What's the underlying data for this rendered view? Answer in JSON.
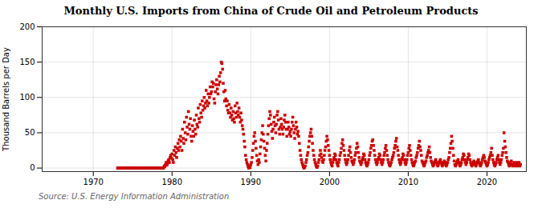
{
  "chart_data": {
    "type": "scatter",
    "title": "Monthly U.S. Imports from China of Crude Oil and Petroleum Products",
    "ylabel": "Thousand Barrels per Day",
    "source": "Source: U.S. Energy Information Administration",
    "color": "#cc0000",
    "marker": "square",
    "grid": true,
    "xlim": [
      1963.5,
      2025
    ],
    "xticks": [
      1970,
      1980,
      1990,
      2000,
      2010,
      2020
    ],
    "ylim": [
      -5,
      200
    ],
    "yticks": [
      0,
      50,
      100,
      150,
      200
    ],
    "x": [
      1973.083,
      1973.167,
      1973.25,
      1973.333,
      1973.417,
      1973.5,
      1973.583,
      1973.667,
      1973.75,
      1973.833,
      1973.917,
      1974.0,
      1974.083,
      1974.167,
      1974.25,
      1974.333,
      1974.417,
      1974.5,
      1974.583,
      1974.667,
      1974.75,
      1974.833,
      1974.917,
      1975.0,
      1975.083,
      1975.167,
      1975.25,
      1975.333,
      1975.417,
      1975.5,
      1975.583,
      1975.667,
      1975.75,
      1975.833,
      1975.917,
      1976.0,
      1976.083,
      1976.167,
      1976.25,
      1976.333,
      1976.417,
      1976.5,
      1976.583,
      1976.667,
      1976.75,
      1976.833,
      1976.917,
      1977.0,
      1977.083,
      1977.167,
      1977.25,
      1977.333,
      1977.417,
      1977.5,
      1977.583,
      1977.667,
      1977.75,
      1977.833,
      1977.917,
      1978.0,
      1978.083,
      1978.167,
      1978.25,
      1978.333,
      1978.417,
      1978.5,
      1978.583,
      1978.667,
      1978.75,
      1978.833,
      1978.917,
      1979.0,
      1979.083,
      1979.167,
      1979.25,
      1979.333,
      1979.417,
      1979.5,
      1979.583,
      1979.667,
      1979.75,
      1979.833,
      1979.917,
      1980.0,
      1980.083,
      1980.167,
      1980.25,
      1980.333,
      1980.417,
      1980.5,
      1980.583,
      1980.667,
      1980.75,
      1980.833,
      1980.917,
      1981.0,
      1981.083,
      1981.167,
      1981.25,
      1981.333,
      1981.417,
      1981.5,
      1981.583,
      1981.667,
      1981.75,
      1981.833,
      1981.917,
      1982.0,
      1982.083,
      1982.167,
      1982.25,
      1982.333,
      1982.417,
      1982.5,
      1982.583,
      1982.667,
      1982.75,
      1982.833,
      1982.917,
      1983.0,
      1983.083,
      1983.167,
      1983.25,
      1983.333,
      1983.417,
      1983.5,
      1983.583,
      1983.667,
      1983.75,
      1983.833,
      1983.917,
      1984.0,
      1984.083,
      1984.167,
      1984.25,
      1984.333,
      1984.417,
      1984.5,
      1984.583,
      1984.667,
      1984.75,
      1984.833,
      1984.917,
      1985.0,
      1985.083,
      1985.167,
      1985.25,
      1985.333,
      1985.417,
      1985.5,
      1985.583,
      1985.667,
      1985.75,
      1985.833,
      1985.917,
      1986.0,
      1986.083,
      1986.167,
      1986.25,
      1986.333,
      1986.417,
      1986.5,
      1986.583,
      1986.667,
      1986.75,
      1986.833,
      1986.917,
      1987.0,
      1987.083,
      1987.167,
      1987.25,
      1987.333,
      1987.417,
      1987.5,
      1987.583,
      1987.667,
      1987.75,
      1987.833,
      1987.917,
      1988.0,
      1988.083,
      1988.167,
      1988.25,
      1988.333,
      1988.417,
      1988.5,
      1988.583,
      1988.667,
      1988.75,
      1988.833,
      1988.917,
      1989.0,
      1989.083,
      1989.167,
      1989.25,
      1989.333,
      1989.417,
      1989.5,
      1989.583,
      1989.667,
      1989.75,
      1989.833,
      1989.917,
      1990.0,
      1990.083,
      1990.167,
      1990.25,
      1990.333,
      1990.417,
      1990.5,
      1990.583,
      1990.667,
      1990.75,
      1990.833,
      1990.917,
      1991.0,
      1991.083,
      1991.167,
      1991.25,
      1991.333,
      1991.417,
      1991.5,
      1991.583,
      1991.667,
      1991.75,
      1991.833,
      1991.917,
      1992.0,
      1992.083,
      1992.167,
      1992.25,
      1992.333,
      1992.417,
      1992.5,
      1992.583,
      1992.667,
      1992.75,
      1992.833,
      1992.917,
      1993.0,
      1993.083,
      1993.167,
      1993.25,
      1993.333,
      1993.417,
      1993.5,
      1993.583,
      1993.667,
      1993.75,
      1993.833,
      1993.917,
      1994.0,
      1994.083,
      1994.167,
      1994.25,
      1994.333,
      1994.417,
      1994.5,
      1994.583,
      1994.667,
      1994.75,
      1994.833,
      1994.917,
      1995.0,
      1995.083,
      1995.167,
      1995.25,
      1995.333,
      1995.417,
      1995.5,
      1995.583,
      1995.667,
      1995.75,
      1995.833,
      1995.917,
      1996.0,
      1996.083,
      1996.167,
      1996.25,
      1996.333,
      1996.417,
      1996.5,
      1996.583,
      1996.667,
      1996.75,
      1996.833,
      1996.917,
      1997.0,
      1997.083,
      1997.167,
      1997.25,
      1997.333,
      1997.417,
      1997.5,
      1997.583,
      1997.667,
      1997.75,
      1997.833,
      1997.917,
      1998.0,
      1998.083,
      1998.167,
      1998.25,
      1998.333,
      1998.417,
      1998.5,
      1998.583,
      1998.667,
      1998.75,
      1998.833,
      1998.917,
      1999.0,
      1999.083,
      1999.167,
      1999.25,
      1999.333,
      1999.417,
      1999.5,
      1999.583,
      1999.667,
      1999.75,
      1999.833,
      1999.917,
      2000.0,
      2000.083,
      2000.167,
      2000.25,
      2000.333,
      2000.417,
      2000.5,
      2000.583,
      2000.667,
      2000.75,
      2000.833,
      2000.917,
      2001.0,
      2001.083,
      2001.167,
      2001.25,
      2001.333,
      2001.417,
      2001.5,
      2001.583,
      2001.667,
      2001.75,
      2001.833,
      2001.917,
      2002.0,
      2002.083,
      2002.167,
      2002.25,
      2002.333,
      2002.417,
      2002.5,
      2002.583,
      2002.667,
      2002.75,
      2002.833,
      2002.917,
      2003.0,
      2003.083,
      2003.167,
      2003.25,
      2003.333,
      2003.417,
      2003.5,
      2003.583,
      2003.667,
      2003.75,
      2003.833,
      2003.917,
      2004.0,
      2004.083,
      2004.167,
      2004.25,
      2004.333,
      2004.417,
      2004.5,
      2004.583,
      2004.667,
      2004.75,
      2004.833,
      2004.917,
      2005.0,
      2005.083,
      2005.167,
      2005.25,
      2005.333,
      2005.417,
      2005.5,
      2005.583,
      2005.667,
      2005.75,
      2005.833,
      2005.917,
      2006.0,
      2006.083,
      2006.167,
      2006.25,
      2006.333,
      2006.417,
      2006.5,
      2006.583,
      2006.667,
      2006.75,
      2006.833,
      2006.917,
      2007.0,
      2007.083,
      2007.167,
      2007.25,
      2007.333,
      2007.417,
      2007.5,
      2007.583,
      2007.667,
      2007.75,
      2007.833,
      2007.917,
      2008.0,
      2008.083,
      2008.167,
      2008.25,
      2008.333,
      2008.417,
      2008.5,
      2008.583,
      2008.667,
      2008.75,
      2008.833,
      2008.917,
      2009.0,
      2009.083,
      2009.167,
      2009.25,
      2009.333,
      2009.417,
      2009.5,
      2009.583,
      2009.667,
      2009.75,
      2009.833,
      2009.917,
      2010.0,
      2010.083,
      2010.167,
      2010.25,
      2010.333,
      2010.417,
      2010.5,
      2010.583,
      2010.667,
      2010.75,
      2010.833,
      2010.917,
      2011.0,
      2011.083,
      2011.167,
      2011.25,
      2011.333,
      2011.417,
      2011.5,
      2011.583,
      2011.667,
      2011.75,
      2011.833,
      2011.917,
      2012.0,
      2012.083,
      2012.167,
      2012.25,
      2012.333,
      2012.417,
      2012.5,
      2012.583,
      2012.667,
      2012.75,
      2012.833,
      2012.917,
      2013.0,
      2013.083,
      2013.167,
      2013.25,
      2013.333,
      2013.417,
      2013.5,
      2013.583,
      2013.667,
      2013.75,
      2013.833,
      2013.917,
      2014.0,
      2014.083,
      2014.167,
      2014.25,
      2014.333,
      2014.417,
      2014.5,
      2014.583,
      2014.667,
      2014.75,
      2014.833,
      2014.917,
      2015.0,
      2015.083,
      2015.167,
      2015.25,
      2015.333,
      2015.417,
      2015.5,
      2015.583,
      2015.667,
      2015.75,
      2015.833,
      2015.917,
      2016.0,
      2016.083,
      2016.167,
      2016.25,
      2016.333,
      2016.417,
      2016.5,
      2016.583,
      2016.667,
      2016.75,
      2016.833,
      2016.917,
      2017.0,
      2017.083,
      2017.167,
      2017.25,
      2017.333,
      2017.417,
      2017.5,
      2017.583,
      2017.667,
      2017.75,
      2017.833,
      2017.917,
      2018.0,
      2018.083,
      2018.167,
      2018.25,
      2018.333,
      2018.417,
      2018.5,
      2018.583,
      2018.667,
      2018.75,
      2018.833,
      2018.917,
      2019.0,
      2019.083,
      2019.167,
      2019.25,
      2019.333,
      2019.417,
      2019.5,
      2019.583,
      2019.667,
      2019.75,
      2019.833,
      2019.917,
      2020.0,
      2020.083,
      2020.167,
      2020.25,
      2020.333,
      2020.417,
      2020.5,
      2020.583,
      2020.667,
      2020.75,
      2020.833,
      2020.917,
      2021.0,
      2021.083,
      2021.167,
      2021.25,
      2021.333,
      2021.417,
      2021.5,
      2021.583,
      2021.667,
      2021.75,
      2021.833,
      2021.917,
      2022.0,
      2022.083,
      2022.167,
      2022.25,
      2022.333,
      2022.417,
      2022.5,
      2022.583,
      2022.667,
      2022.75,
      2022.833,
      2022.917,
      2023.0,
      2023.083,
      2023.167,
      2023.25,
      2023.333,
      2023.417,
      2023.5,
      2023.583,
      2023.667,
      2023.75,
      2023.833,
      2023.917,
      2024.0,
      2024.083,
      2024.167,
      2024.25
    ],
    "values": [
      0,
      0,
      0,
      0,
      0,
      0,
      0,
      0,
      0,
      0,
      0,
      0,
      0,
      0,
      0,
      0,
      0,
      0,
      0,
      0,
      0,
      0,
      0,
      0,
      0,
      0,
      0,
      0,
      0,
      0,
      0,
      0,
      0,
      0,
      0,
      0,
      0,
      0,
      0,
      0,
      0,
      0,
      0,
      0,
      0,
      0,
      0,
      0,
      0,
      0,
      0,
      0,
      0,
      0,
      0,
      0,
      0,
      0,
      0,
      0,
      0,
      0,
      0,
      0,
      0,
      0,
      0,
      0,
      0,
      0,
      0,
      3,
      2,
      5,
      8,
      4,
      6,
      10,
      12,
      8,
      15,
      18,
      14,
      20,
      12,
      8,
      25,
      18,
      30,
      22,
      15,
      28,
      35,
      25,
      40,
      30,
      45,
      38,
      25,
      55,
      42,
      35,
      65,
      50,
      40,
      72,
      58,
      48,
      80,
      62,
      55,
      70,
      45,
      38,
      60,
      52,
      45,
      68,
      55,
      48,
      75,
      62,
      58,
      85,
      70,
      65,
      90,
      78,
      72,
      95,
      82,
      88,
      100,
      85,
      92,
      110,
      95,
      88,
      105,
      92,
      100,
      115,
      105,
      108,
      122,
      115,
      120,
      98,
      92,
      108,
      118,
      125,
      112,
      105,
      118,
      130,
      122,
      135,
      150,
      148,
      140,
      120,
      108,
      95,
      110,
      98,
      88,
      95,
      82,
      78,
      90,
      78,
      72,
      85,
      75,
      68,
      80,
      70,
      65,
      88,
      78,
      72,
      92,
      80,
      75,
      85,
      72,
      65,
      78,
      68,
      60,
      55,
      48,
      38,
      30,
      18,
      12,
      8,
      5,
      2,
      0,
      3,
      1,
      5,
      8,
      15,
      25,
      35,
      45,
      50,
      38,
      28,
      18,
      10,
      5,
      12,
      8,
      20,
      30,
      40,
      50,
      60,
      48,
      38,
      28,
      18,
      10,
      25,
      35,
      48,
      60,
      70,
      80,
      75,
      62,
      52,
      42,
      55,
      65,
      72,
      60,
      50,
      62,
      75,
      80,
      68,
      55,
      48,
      58,
      70,
      62,
      55,
      48,
      58,
      68,
      75,
      65,
      55,
      45,
      55,
      65,
      58,
      48,
      52,
      45,
      55,
      65,
      72,
      60,
      50,
      42,
      55,
      65,
      58,
      48,
      52,
      45,
      35,
      25,
      18,
      12,
      8,
      5,
      2,
      0,
      1,
      3,
      8,
      12,
      18,
      22,
      30,
      38,
      45,
      50,
      55,
      45,
      35,
      25,
      18,
      12,
      8,
      5,
      2,
      1,
      3,
      8,
      12,
      18,
      25,
      20,
      15,
      10,
      8,
      12,
      18,
      25,
      30,
      38,
      45,
      40,
      32,
      25,
      18,
      12,
      8,
      5,
      3,
      8,
      12,
      15,
      20,
      18,
      12,
      8,
      5,
      3,
      8,
      12,
      18,
      22,
      28,
      35,
      40,
      32,
      25,
      18,
      12,
      8,
      5,
      8,
      12,
      18,
      25,
      30,
      22,
      15,
      10,
      8,
      5,
      8,
      12,
      18,
      22,
      28,
      35,
      30,
      22,
      15,
      10,
      8,
      5,
      8,
      12,
      15,
      20,
      18,
      12,
      8,
      5,
      3,
      5,
      8,
      12,
      18,
      22,
      28,
      32,
      38,
      40,
      32,
      25,
      18,
      12,
      8,
      5,
      8,
      12,
      15,
      20,
      18,
      12,
      8,
      5,
      8,
      12,
      18,
      22,
      28,
      32,
      25,
      18,
      12,
      8,
      5,
      3,
      5,
      8,
      12,
      15,
      18,
      22,
      28,
      32,
      38,
      42,
      30,
      25,
      18,
      12,
      8,
      5,
      8,
      12,
      15,
      20,
      18,
      12,
      8,
      5,
      8,
      12,
      18,
      22,
      28,
      32,
      25,
      18,
      12,
      8,
      5,
      3,
      5,
      8,
      10,
      15,
      18,
      22,
      28,
      32,
      38,
      30,
      25,
      18,
      10,
      8,
      5,
      3,
      5,
      8,
      10,
      15,
      18,
      22,
      25,
      30,
      22,
      15,
      10,
      8,
      5,
      3,
      5,
      8,
      10,
      12,
      8,
      5,
      3,
      5,
      8,
      10,
      12,
      8,
      5,
      3,
      5,
      8,
      10,
      8,
      5,
      3,
      5,
      8,
      12,
      15,
      22,
      28,
      35,
      45,
      38,
      28,
      18,
      10,
      5,
      3,
      5,
      8,
      10,
      12,
      8,
      5,
      3,
      5,
      8,
      12,
      15,
      20,
      18,
      12,
      8,
      5,
      8,
      12,
      15,
      20,
      18,
      12,
      8,
      5,
      3,
      5,
      8,
      10,
      8,
      5,
      3,
      5,
      8,
      10,
      12,
      8,
      5,
      3,
      5,
      8,
      12,
      15,
      18,
      15,
      10,
      8,
      5,
      3,
      5,
      8,
      12,
      15,
      18,
      22,
      28,
      18,
      12,
      8,
      5,
      3,
      5,
      8,
      12,
      15,
      18,
      12,
      8,
      5,
      8,
      12,
      18,
      22,
      28,
      50,
      38,
      30,
      22,
      15,
      10,
      8,
      5,
      3,
      5,
      8,
      10,
      5,
      3,
      5,
      8,
      5,
      3,
      5,
      8,
      3,
      5,
      5,
      8,
      3,
      5
    ]
  }
}
